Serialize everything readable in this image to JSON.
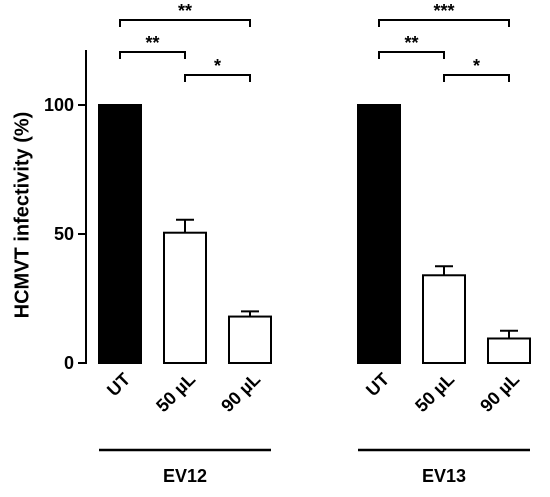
{
  "chart_data": {
    "type": "bar",
    "ylabel": "HCMVT infectivity (%)",
    "ylim": [
      0,
      120
    ],
    "yticks": [
      "0",
      "50",
      "100"
    ],
    "groups": [
      {
        "name": "EV12",
        "bars": [
          {
            "category": "UT",
            "value": 100,
            "error": 0,
            "fill": "#000000"
          },
          {
            "category": "50 µL",
            "value": 50.5,
            "error": 5,
            "fill": "#ffffff"
          },
          {
            "category": "90 µL",
            "value": 18,
            "error": 2,
            "fill": "#ffffff"
          }
        ],
        "significance": [
          {
            "from": 0,
            "to": 2,
            "label": "**",
            "level": 2
          },
          {
            "from": 0,
            "to": 1,
            "label": "**",
            "level": 1
          },
          {
            "from": 1,
            "to": 2,
            "label": "*",
            "level": 0
          }
        ]
      },
      {
        "name": "EV13",
        "bars": [
          {
            "category": "UT",
            "value": 100,
            "error": 0,
            "fill": "#000000"
          },
          {
            "category": "50 µL",
            "value": 34,
            "error": 3.5,
            "fill": "#ffffff"
          },
          {
            "category": "90 µL",
            "value": 9.5,
            "error": 3,
            "fill": "#ffffff"
          }
        ],
        "significance": [
          {
            "from": 0,
            "to": 2,
            "label": "***",
            "level": 2
          },
          {
            "from": 0,
            "to": 1,
            "label": "**",
            "level": 1
          },
          {
            "from": 1,
            "to": 2,
            "label": "*",
            "level": 0
          }
        ]
      }
    ]
  }
}
